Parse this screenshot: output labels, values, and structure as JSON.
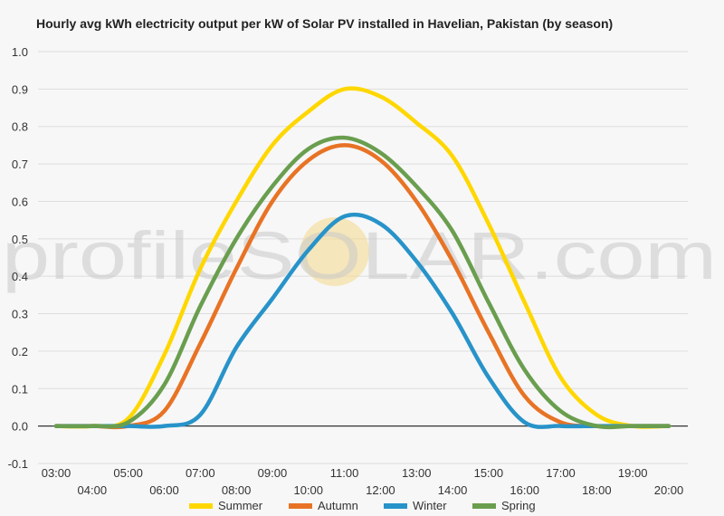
{
  "chart_data": {
    "type": "line",
    "title": "Hourly avg kWh electricity output per kW of Solar PV installed in Havelian, Pakistan (by season)",
    "xlabel": "",
    "ylabel": "",
    "ylim": [
      -0.1,
      1.0
    ],
    "y_ticks": [
      "-0.1",
      "0.0",
      "0.1",
      "0.2",
      "0.3",
      "0.4",
      "0.5",
      "0.6",
      "0.7",
      "0.8",
      "0.9",
      "1.0"
    ],
    "categories": [
      "03:00",
      "04:00",
      "05:00",
      "06:00",
      "07:00",
      "08:00",
      "09:00",
      "10:00",
      "11:00",
      "12:00",
      "13:00",
      "14:00",
      "15:00",
      "16:00",
      "17:00",
      "18:00",
      "19:00",
      "20:00"
    ],
    "grid": true,
    "legend_position": "bottom",
    "series": [
      {
        "name": "Summer",
        "color": "#ffd700",
        "values": [
          0.0,
          0.0,
          0.02,
          0.19,
          0.42,
          0.6,
          0.75,
          0.84,
          0.9,
          0.88,
          0.81,
          0.72,
          0.54,
          0.33,
          0.13,
          0.03,
          0.0,
          0.0
        ]
      },
      {
        "name": "Autumn",
        "color": "#e87325",
        "values": [
          0.0,
          0.0,
          0.0,
          0.04,
          0.22,
          0.42,
          0.6,
          0.71,
          0.75,
          0.71,
          0.6,
          0.44,
          0.25,
          0.08,
          0.01,
          0.0,
          0.0,
          0.0
        ]
      },
      {
        "name": "Winter",
        "color": "#2893c9",
        "values": [
          0.0,
          0.0,
          0.0,
          0.0,
          0.03,
          0.21,
          0.34,
          0.47,
          0.56,
          0.54,
          0.44,
          0.3,
          0.13,
          0.01,
          0.0,
          0.0,
          0.0,
          0.0
        ]
      },
      {
        "name": "Spring",
        "color": "#6a9e4f",
        "values": [
          0.0,
          0.0,
          0.01,
          0.11,
          0.32,
          0.5,
          0.64,
          0.74,
          0.77,
          0.73,
          0.64,
          0.52,
          0.33,
          0.15,
          0.04,
          0.0,
          0.0,
          0.0
        ]
      }
    ]
  },
  "watermark": {
    "text": "profileSOLAR.com"
  }
}
